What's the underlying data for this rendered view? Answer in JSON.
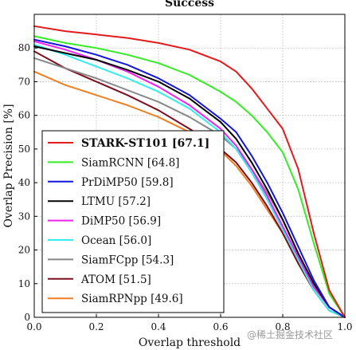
{
  "chart_data": {
    "type": "line",
    "title": "Success",
    "xlabel": "Overlap threshold",
    "ylabel": "Overlap Precision [%]",
    "xlim": [
      0,
      1
    ],
    "ylim": [
      0,
      90
    ],
    "xticks": [
      "0.0",
      "0.2",
      "0.4",
      "0.6",
      "0.8",
      "1.0"
    ],
    "yticks": [
      "0",
      "10",
      "20",
      "30",
      "40",
      "50",
      "60",
      "70",
      "80"
    ],
    "grid": true,
    "legend_position": "lower-left",
    "series": [
      {
        "name": "STARK-ST101",
        "score": "[67.1]",
        "color": "#e41a1c",
        "bold": true,
        "x": [
          0,
          0.1,
          0.2,
          0.3,
          0.4,
          0.5,
          0.6,
          0.65,
          0.7,
          0.75,
          0.8,
          0.85,
          0.9,
          0.95,
          1.0
        ],
        "y": [
          86.5,
          85,
          84,
          83,
          81.5,
          79.5,
          76,
          73,
          68,
          62,
          56,
          44,
          25,
          8,
          0
        ]
      },
      {
        "name": "SiamRCNN",
        "score": "[64.8]",
        "color": "#33ee22",
        "bold": false,
        "x": [
          0,
          0.1,
          0.2,
          0.3,
          0.4,
          0.5,
          0.6,
          0.65,
          0.7,
          0.75,
          0.8,
          0.85,
          0.9,
          0.95,
          1.0
        ],
        "y": [
          83.5,
          81.5,
          80,
          78,
          75.5,
          72,
          67,
          64,
          60,
          55,
          49,
          38,
          22,
          7,
          0
        ]
      },
      {
        "name": "PrDiMP50",
        "score": "[59.8]",
        "color": "#1515dd",
        "bold": false,
        "x": [
          0,
          0.1,
          0.2,
          0.3,
          0.4,
          0.5,
          0.6,
          0.65,
          0.7,
          0.75,
          0.8,
          0.85,
          0.9,
          0.95,
          1.0
        ],
        "y": [
          82.5,
          80.5,
          78,
          75,
          71,
          66,
          59,
          55,
          48,
          40,
          31,
          21,
          11,
          3,
          0
        ]
      },
      {
        "name": "LTMU",
        "score": "[57.2]",
        "color": "#000000",
        "bold": false,
        "x": [
          0,
          0.1,
          0.2,
          0.3,
          0.4,
          0.5,
          0.6,
          0.65,
          0.7,
          0.75,
          0.8,
          0.85,
          0.9,
          0.95,
          1.0
        ],
        "y": [
          80.5,
          78.5,
          76.5,
          73.5,
          70,
          65,
          58,
          53,
          46,
          38,
          29,
          19,
          10,
          3,
          0
        ]
      },
      {
        "name": "DiMP50",
        "score": "[56.9]",
        "color": "#ee22ee",
        "bold": false,
        "x": [
          0,
          0.1,
          0.2,
          0.3,
          0.4,
          0.5,
          0.6,
          0.65,
          0.7,
          0.75,
          0.8,
          0.85,
          0.9,
          0.95,
          1.0
        ],
        "y": [
          82,
          79.5,
          76.5,
          73,
          68.5,
          63,
          56,
          51,
          44,
          36,
          27,
          18,
          9,
          3,
          0
        ]
      },
      {
        "name": "Ocean",
        "score": "[56.0]",
        "color": "#33eeee",
        "bold": false,
        "x": [
          0,
          0.1,
          0.2,
          0.3,
          0.4,
          0.5,
          0.6,
          0.65,
          0.7,
          0.75,
          0.8,
          0.85,
          0.9,
          0.95,
          1.0
        ],
        "y": [
          81,
          78,
          74.5,
          71,
          67,
          62,
          55,
          50,
          43,
          35,
          26,
          17,
          8,
          2,
          0
        ]
      },
      {
        "name": "SiamFCpp",
        "score": "[54.3]",
        "color": "#888888",
        "bold": false,
        "x": [
          0,
          0.1,
          0.2,
          0.3,
          0.4,
          0.5,
          0.6,
          0.65,
          0.7,
          0.75,
          0.8,
          0.85,
          0.9,
          0.95,
          1.0
        ],
        "y": [
          77,
          74,
          71,
          67.5,
          64,
          59.5,
          54,
          50,
          44,
          37,
          29,
          19,
          9,
          3,
          0
        ]
      },
      {
        "name": "ATOM",
        "score": "[51.5]",
        "color": "#7a0f1f",
        "bold": false,
        "x": [
          0,
          0.1,
          0.2,
          0.3,
          0.4,
          0.5,
          0.6,
          0.65,
          0.7,
          0.75,
          0.8,
          0.85,
          0.9,
          0.95,
          1.0
        ],
        "y": [
          79,
          74,
          70,
          66,
          61.5,
          56,
          50,
          46,
          40,
          33,
          25,
          16,
          8,
          2,
          0
        ]
      },
      {
        "name": "SiamRPNpp",
        "score": "[49.6]",
        "color": "#f07f22",
        "bold": false,
        "x": [
          0,
          0.1,
          0.2,
          0.3,
          0.4,
          0.5,
          0.6,
          0.65,
          0.7,
          0.75,
          0.8,
          0.85,
          0.9,
          0.95,
          1.0
        ],
        "y": [
          73,
          69,
          66,
          63,
          59.5,
          55,
          49.5,
          45,
          39,
          32,
          25,
          16,
          8,
          2,
          0
        ]
      }
    ]
  },
  "watermark": "@稀土掘金技术社区"
}
